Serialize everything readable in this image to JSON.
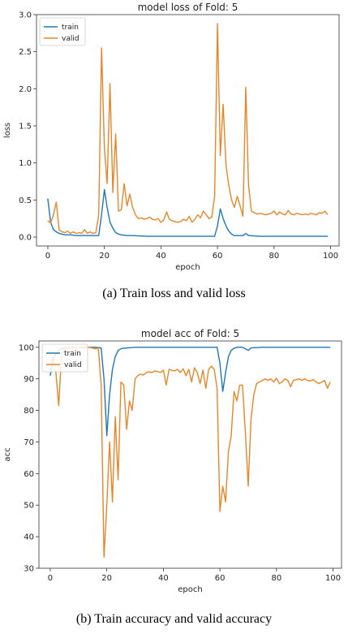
{
  "chart_data": [
    {
      "type": "line",
      "title": "model loss of Fold: 5",
      "xlabel": "epoch",
      "ylabel": "loss",
      "xlim": [
        -4,
        103
      ],
      "ylim": [
        -0.12,
        3.0
      ],
      "xticks": [
        0,
        20,
        40,
        60,
        80,
        100
      ],
      "yticks": [
        0.0,
        0.5,
        1.0,
        1.5,
        2.0,
        2.5,
        3.0
      ],
      "ytick_labels": [
        "0.0",
        "0.5",
        "1.0",
        "1.5",
        "2.0",
        "2.5",
        "3.0"
      ],
      "legend": "top-left",
      "series": [
        {
          "name": "train",
          "color": "#1f77b4",
          "points": [
            [
              0,
              0.52
            ],
            [
              1,
              0.2
            ],
            [
              2,
              0.1
            ],
            [
              3,
              0.07
            ],
            [
              4,
              0.05
            ],
            [
              5,
              0.04
            ],
            [
              6,
              0.03
            ],
            [
              8,
              0.03
            ],
            [
              10,
              0.02
            ],
            [
              12,
              0.02
            ],
            [
              14,
              0.02
            ],
            [
              16,
              0.02
            ],
            [
              18,
              0.02
            ],
            [
              19,
              0.3
            ],
            [
              20,
              0.64
            ],
            [
              21,
              0.4
            ],
            [
              22,
              0.2
            ],
            [
              23,
              0.12
            ],
            [
              24,
              0.06
            ],
            [
              25,
              0.04
            ],
            [
              26,
              0.03
            ],
            [
              28,
              0.02
            ],
            [
              30,
              0.02
            ],
            [
              35,
              0.01
            ],
            [
              40,
              0.01
            ],
            [
              45,
              0.01
            ],
            [
              50,
              0.01
            ],
            [
              55,
              0.01
            ],
            [
              59,
              0.01
            ],
            [
              60,
              0.15
            ],
            [
              61,
              0.38
            ],
            [
              62,
              0.25
            ],
            [
              63,
              0.15
            ],
            [
              64,
              0.08
            ],
            [
              65,
              0.04
            ],
            [
              66,
              0.02
            ],
            [
              68,
              0.02
            ],
            [
              69,
              0.02
            ],
            [
              70,
              0.05
            ],
            [
              71,
              0.02
            ],
            [
              75,
              0.01
            ],
            [
              80,
              0.01
            ],
            [
              85,
              0.01
            ],
            [
              90,
              0.01
            ],
            [
              95,
              0.01
            ],
            [
              99,
              0.01
            ]
          ]
        },
        {
          "name": "valid",
          "color": "#e6862a",
          "points": [
            [
              0,
              0.22
            ],
            [
              1,
              0.19
            ],
            [
              2,
              0.3
            ],
            [
              3,
              0.47
            ],
            [
              4,
              0.1
            ],
            [
              5,
              0.07
            ],
            [
              6,
              0.06
            ],
            [
              7,
              0.08
            ],
            [
              8,
              0.05
            ],
            [
              9,
              0.07
            ],
            [
              10,
              0.05
            ],
            [
              11,
              0.06
            ],
            [
              12,
              0.05
            ],
            [
              13,
              0.1
            ],
            [
              14,
              0.05
            ],
            [
              15,
              0.07
            ],
            [
              16,
              0.05
            ],
            [
              17,
              0.06
            ],
            [
              18,
              0.3
            ],
            [
              19,
              2.55
            ],
            [
              20,
              1.2
            ],
            [
              21,
              0.72
            ],
            [
              22,
              2.07
            ],
            [
              23,
              0.6
            ],
            [
              24,
              1.39
            ],
            [
              25,
              0.35
            ],
            [
              26,
              0.37
            ],
            [
              27,
              0.72
            ],
            [
              28,
              0.42
            ],
            [
              29,
              0.58
            ],
            [
              30,
              0.4
            ],
            [
              31,
              0.3
            ],
            [
              32,
              0.25
            ],
            [
              33,
              0.26
            ],
            [
              34,
              0.24
            ],
            [
              35,
              0.25
            ],
            [
              36,
              0.27
            ],
            [
              37,
              0.24
            ],
            [
              38,
              0.23
            ],
            [
              39,
              0.25
            ],
            [
              40,
              0.2
            ],
            [
              41,
              0.23
            ],
            [
              42,
              0.34
            ],
            [
              43,
              0.24
            ],
            [
              44,
              0.22
            ],
            [
              45,
              0.21
            ],
            [
              46,
              0.2
            ],
            [
              47,
              0.21
            ],
            [
              48,
              0.24
            ],
            [
              49,
              0.22
            ],
            [
              50,
              0.28
            ],
            [
              51,
              0.2
            ],
            [
              52,
              0.24
            ],
            [
              53,
              0.3
            ],
            [
              54,
              0.26
            ],
            [
              55,
              0.35
            ],
            [
              56,
              0.3
            ],
            [
              57,
              0.25
            ],
            [
              58,
              0.27
            ],
            [
              59,
              0.55
            ],
            [
              60,
              2.88
            ],
            [
              61,
              1.1
            ],
            [
              62,
              1.79
            ],
            [
              63,
              0.97
            ],
            [
              64,
              0.7
            ],
            [
              65,
              0.5
            ],
            [
              66,
              0.4
            ],
            [
              67,
              0.55
            ],
            [
              68,
              0.42
            ],
            [
              69,
              0.28
            ],
            [
              70,
              2.02
            ],
            [
              71,
              0.7
            ],
            [
              72,
              0.35
            ],
            [
              73,
              0.33
            ],
            [
              74,
              0.31
            ],
            [
              75,
              0.32
            ],
            [
              76,
              0.31
            ],
            [
              77,
              0.3
            ],
            [
              78,
              0.31
            ],
            [
              79,
              0.32
            ],
            [
              80,
              0.35
            ],
            [
              81,
              0.3
            ],
            [
              82,
              0.34
            ],
            [
              83,
              0.31
            ],
            [
              84,
              0.3
            ],
            [
              85,
              0.36
            ],
            [
              86,
              0.31
            ],
            [
              87,
              0.3
            ],
            [
              88,
              0.32
            ],
            [
              89,
              0.31
            ],
            [
              90,
              0.3
            ],
            [
              91,
              0.31
            ],
            [
              92,
              0.3
            ],
            [
              93,
              0.32
            ],
            [
              94,
              0.31
            ],
            [
              95,
              0.3
            ],
            [
              96,
              0.33
            ],
            [
              97,
              0.32
            ],
            [
              98,
              0.35
            ],
            [
              99,
              0.3
            ]
          ]
        }
      ]
    },
    {
      "type": "line",
      "title": "model acc of Fold: 5",
      "xlabel": "epoch",
      "ylabel": "acc",
      "xlim": [
        -4,
        103
      ],
      "ylim": [
        30,
        102
      ],
      "xticks": [
        0,
        20,
        40,
        60,
        80,
        100
      ],
      "yticks": [
        30,
        40,
        50,
        60,
        70,
        80,
        90,
        100
      ],
      "ytick_labels": [
        "30",
        "40",
        "50",
        "60",
        "70",
        "80",
        "90",
        "100"
      ],
      "legend": "top-left",
      "series": [
        {
          "name": "train",
          "color": "#1f77b4",
          "points": [
            [
              0,
              91
            ],
            [
              1,
              96
            ],
            [
              2,
              98
            ],
            [
              3,
              99
            ],
            [
              4,
              99.5
            ],
            [
              5,
              99.8
            ],
            [
              8,
              99.9
            ],
            [
              12,
              100
            ],
            [
              16,
              100
            ],
            [
              18,
              99.8
            ],
            [
              19,
              90
            ],
            [
              20,
              72
            ],
            [
              21,
              85
            ],
            [
              22,
              93
            ],
            [
              23,
              97
            ],
            [
              24,
              99
            ],
            [
              25,
              99.5
            ],
            [
              26,
              99.7
            ],
            [
              30,
              100
            ],
            [
              40,
              100
            ],
            [
              50,
              100
            ],
            [
              59,
              100
            ],
            [
              60,
              95
            ],
            [
              61,
              86
            ],
            [
              62,
              92
            ],
            [
              63,
              97
            ],
            [
              64,
              99
            ],
            [
              65,
              99.7
            ],
            [
              66,
              100
            ],
            [
              68,
              100
            ],
            [
              69,
              99.5
            ],
            [
              70,
              99
            ],
            [
              71,
              99.8
            ],
            [
              75,
              100
            ],
            [
              80,
              100
            ],
            [
              90,
              100
            ],
            [
              99,
              100
            ]
          ]
        },
        {
          "name": "valid",
          "color": "#e6862a",
          "points": [
            [
              0,
              95
            ],
            [
              1,
              97
            ],
            [
              2,
              92
            ],
            [
              3,
              81.5
            ],
            [
              4,
              98
            ],
            [
              5,
              99.5
            ],
            [
              6,
              100
            ],
            [
              8,
              99.7
            ],
            [
              10,
              100
            ],
            [
              12,
              99.8
            ],
            [
              14,
              100
            ],
            [
              16,
              99.5
            ],
            [
              17,
              99.8
            ],
            [
              18,
              88
            ],
            [
              19,
              33.5
            ],
            [
              20,
              50
            ],
            [
              21,
              70
            ],
            [
              22,
              51
            ],
            [
              23,
              78
            ],
            [
              24,
              58
            ],
            [
              25,
              89
            ],
            [
              26,
              88
            ],
            [
              27,
              74
            ],
            [
              28,
              83
            ],
            [
              29,
              80
            ],
            [
              30,
              90
            ],
            [
              31,
              91
            ],
            [
              32,
              91.5
            ],
            [
              33,
              91.2
            ],
            [
              34,
              92
            ],
            [
              35,
              92.2
            ],
            [
              36,
              92
            ],
            [
              37,
              92.5
            ],
            [
              38,
              92.3
            ],
            [
              39,
              92
            ],
            [
              40,
              92.8
            ],
            [
              41,
              88
            ],
            [
              42,
              93
            ],
            [
              43,
              92.7
            ],
            [
              44,
              92.5
            ],
            [
              45,
              93
            ],
            [
              46,
              92
            ],
            [
              47,
              93.2
            ],
            [
              48,
              91
            ],
            [
              49,
              93
            ],
            [
              50,
              89
            ],
            [
              51,
              93.5
            ],
            [
              52,
              92
            ],
            [
              53,
              88.5
            ],
            [
              54,
              92.8
            ],
            [
              55,
              87
            ],
            [
              56,
              93
            ],
            [
              57,
              94
            ],
            [
              58,
              93
            ],
            [
              59,
              87
            ],
            [
              60,
              48
            ],
            [
              61,
              56
            ],
            [
              62,
              51
            ],
            [
              63,
              67
            ],
            [
              64,
              72
            ],
            [
              65,
              86
            ],
            [
              66,
              83
            ],
            [
              67,
              88
            ],
            [
              68,
              88
            ],
            [
              69,
              73
            ],
            [
              70,
              56
            ],
            [
              71,
              77
            ],
            [
              72,
              85
            ],
            [
              73,
              88.5
            ],
            [
              74,
              89
            ],
            [
              75,
              89.5
            ],
            [
              76,
              90
            ],
            [
              77,
              89.5
            ],
            [
              78,
              90
            ],
            [
              79,
              89
            ],
            [
              80,
              90.2
            ],
            [
              81,
              88.5
            ],
            [
              82,
              89
            ],
            [
              83,
              90
            ],
            [
              84,
              89.5
            ],
            [
              85,
              87.5
            ],
            [
              86,
              89.5
            ],
            [
              87,
              89.7
            ],
            [
              88,
              90
            ],
            [
              89,
              89.5
            ],
            [
              90,
              90
            ],
            [
              91,
              89.5
            ],
            [
              92,
              89.3
            ],
            [
              93,
              89.8
            ],
            [
              94,
              89
            ],
            [
              95,
              88.5
            ],
            [
              96,
              89
            ],
            [
              97,
              89.5
            ],
            [
              98,
              87
            ],
            [
              99,
              89
            ]
          ]
        }
      ]
    }
  ],
  "captions": {
    "a": "(a) Train loss and valid loss",
    "b": "(b) Train accuracy and valid accuracy"
  }
}
